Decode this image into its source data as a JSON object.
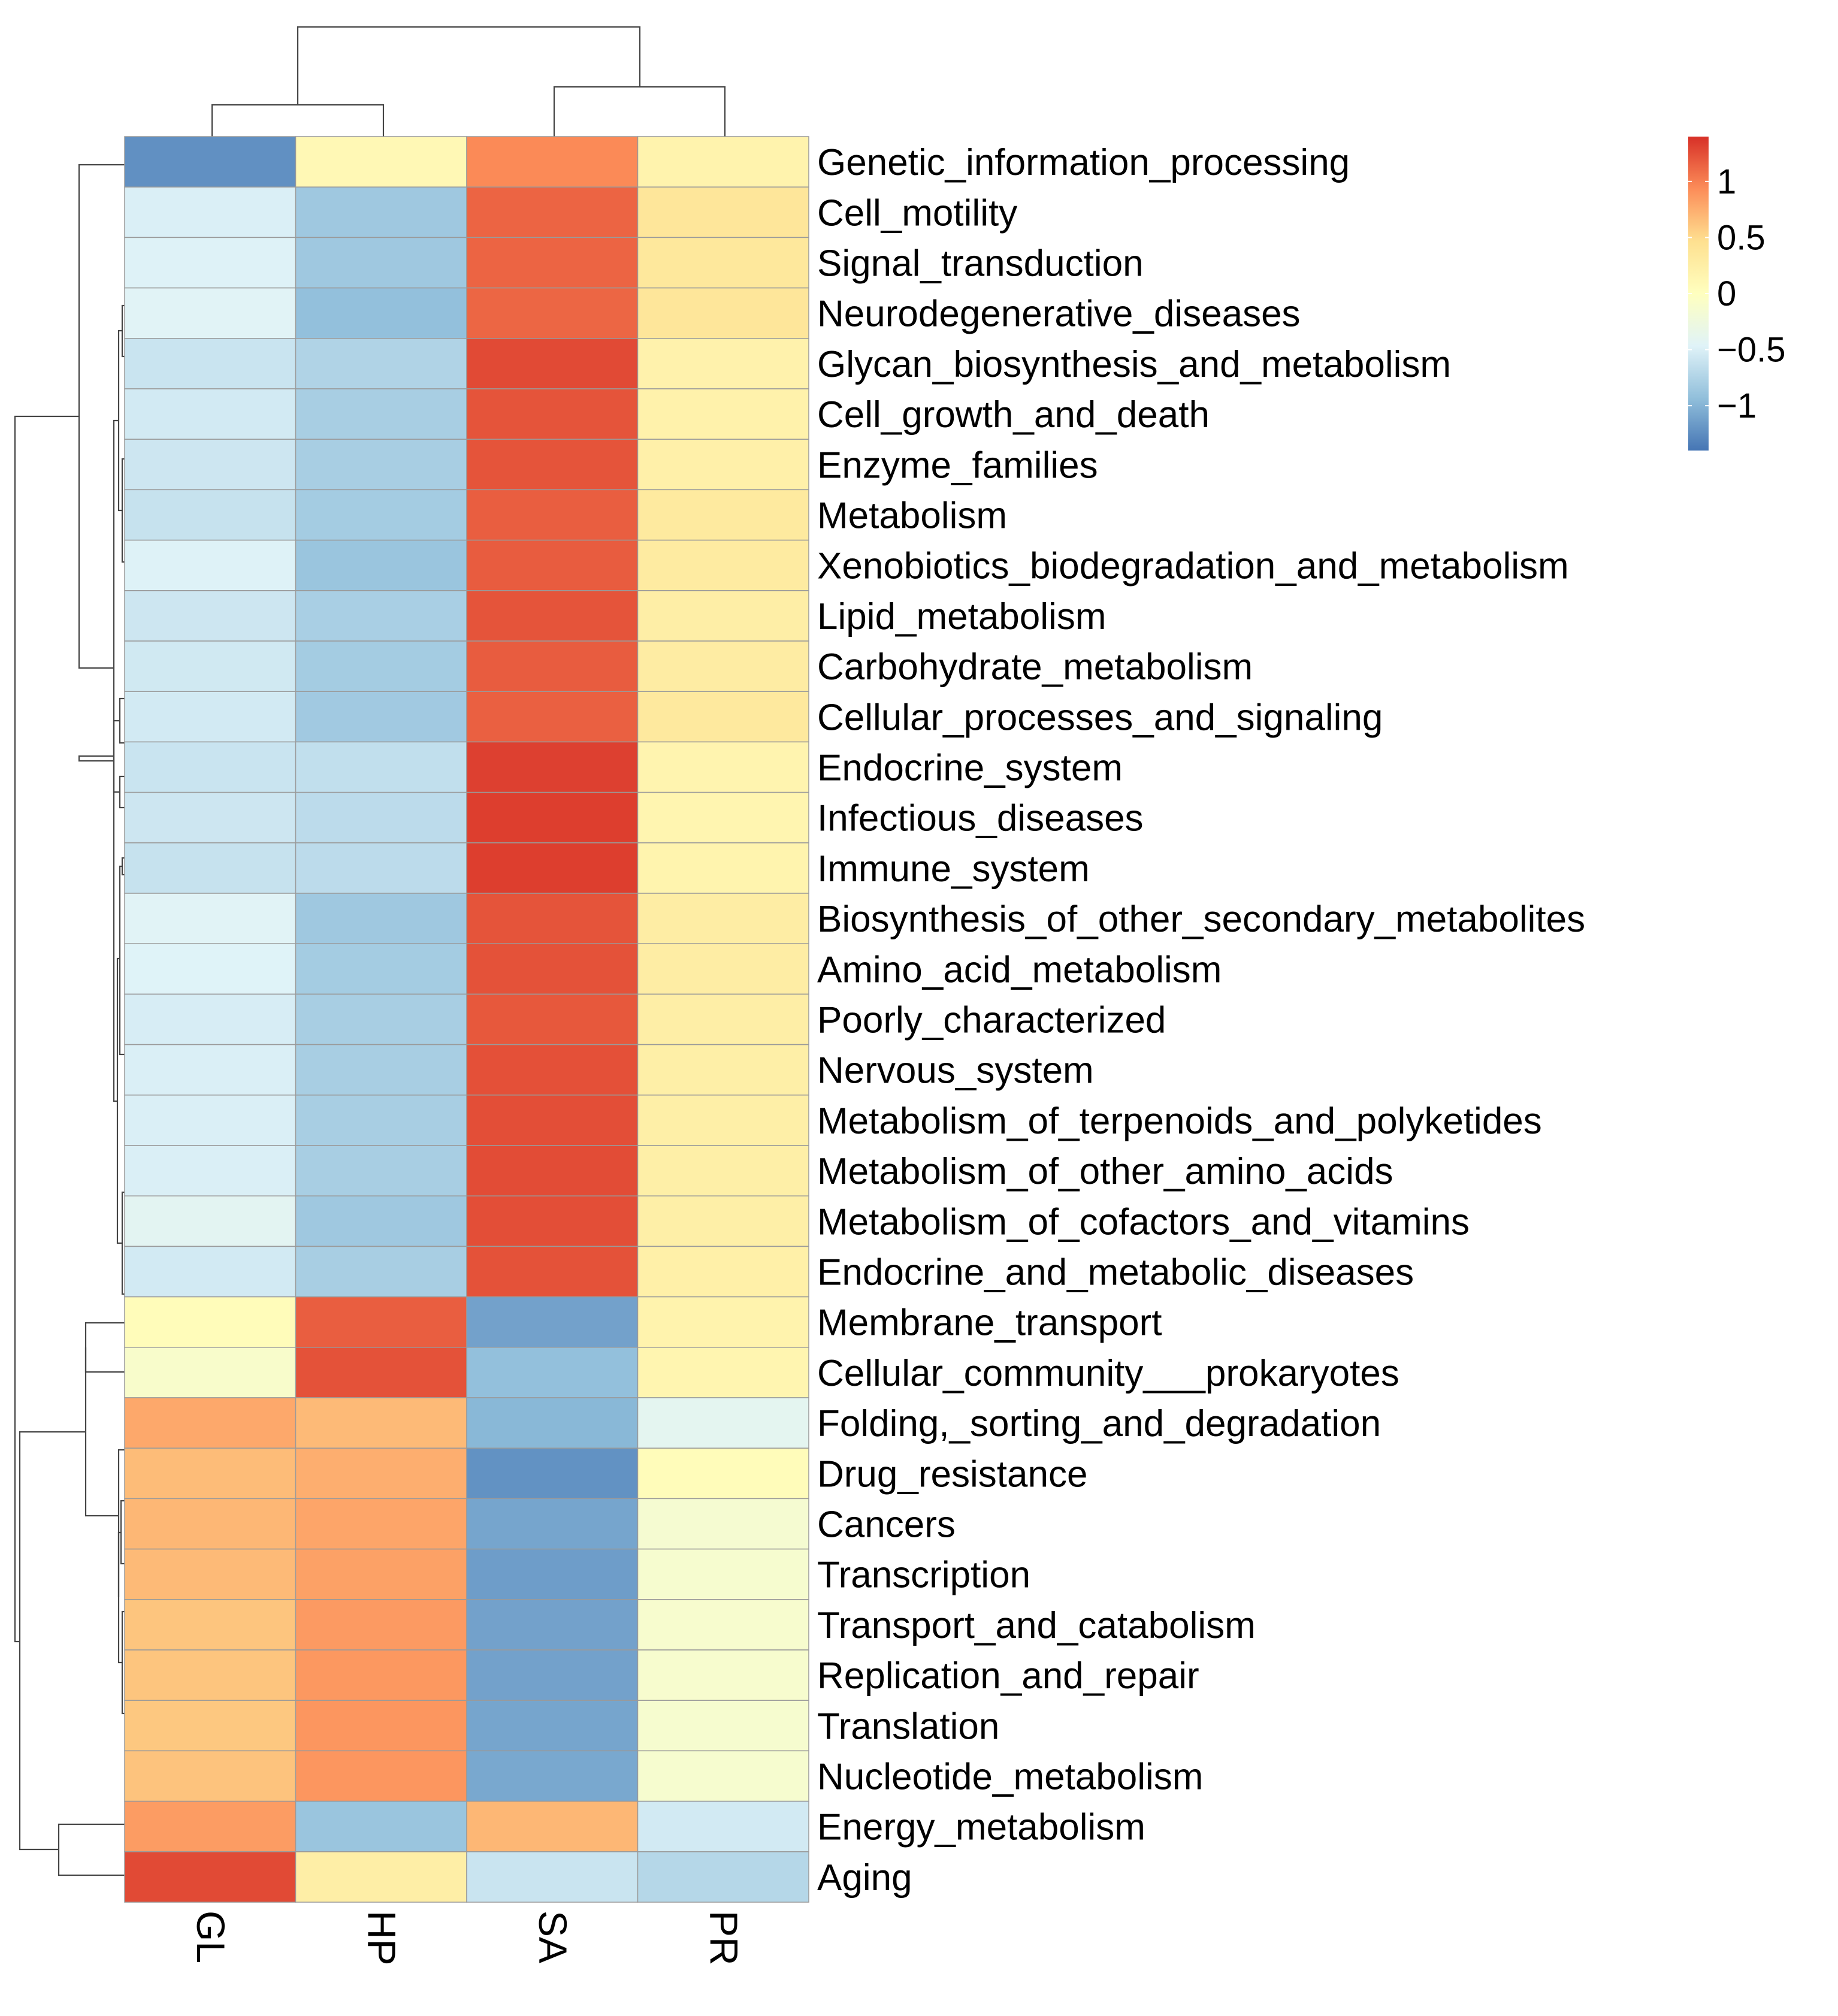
{
  "chart_data": {
    "type": "heatmap",
    "title": "",
    "columns": [
      "GL",
      "HP",
      "SA",
      "PR"
    ],
    "rows": [
      {
        "label": "Genetic_information_processing",
        "values": [
          -1.23,
          0.1,
          0.95,
          0.18
        ]
      },
      {
        "label": "Cell_motility",
        "values": [
          -0.5,
          -0.85,
          1.14,
          0.37
        ]
      },
      {
        "label": "Signal_transduction",
        "values": [
          -0.48,
          -0.85,
          1.14,
          0.35
        ]
      },
      {
        "label": "Neurodegenerative_diseases",
        "values": [
          -0.45,
          -0.92,
          1.13,
          0.37
        ]
      },
      {
        "label": "Glycan_biosynthesis_and_metabolism",
        "values": [
          -0.6,
          -0.75,
          1.27,
          0.19
        ]
      },
      {
        "label": "Cell_growth_and_death",
        "values": [
          -0.55,
          -0.8,
          1.22,
          0.2
        ]
      },
      {
        "label": "Enzyme_families",
        "values": [
          -0.58,
          -0.8,
          1.22,
          0.22
        ]
      },
      {
        "label": "Metabolism",
        "values": [
          -0.62,
          -0.82,
          1.17,
          0.32
        ]
      },
      {
        "label": "Xenobiotics_biodegradation_and_metabolism",
        "values": [
          -0.48,
          -0.88,
          1.18,
          0.3
        ]
      },
      {
        "label": "Lipid_metabolism",
        "values": [
          -0.58,
          -0.79,
          1.22,
          0.25
        ]
      },
      {
        "label": "Carbohydrate_metabolism",
        "values": [
          -0.56,
          -0.82,
          1.18,
          0.28
        ]
      },
      {
        "label": "Cellular_processes_and_signaling",
        "values": [
          -0.55,
          -0.84,
          1.16,
          0.33
        ]
      },
      {
        "label": "Endocrine_system",
        "values": [
          -0.6,
          -0.65,
          1.32,
          0.16
        ]
      },
      {
        "label": "Infectious_diseases",
        "values": [
          -0.58,
          -0.68,
          1.33,
          0.15
        ]
      },
      {
        "label": "Immune_system",
        "values": [
          -0.62,
          -0.68,
          1.33,
          0.17
        ]
      },
      {
        "label": "Biosynthesis_of_other_secondary_metabolites",
        "values": [
          -0.45,
          -0.85,
          1.22,
          0.27
        ]
      },
      {
        "label": "Amino_acid_metabolism",
        "values": [
          -0.47,
          -0.82,
          1.23,
          0.27
        ]
      },
      {
        "label": "Poorly_characterized",
        "values": [
          -0.52,
          -0.8,
          1.2,
          0.25
        ]
      },
      {
        "label": "Nervous_system",
        "values": [
          -0.5,
          -0.8,
          1.24,
          0.24
        ]
      },
      {
        "label": "Metabolism_of_terpenoids_and_polyketides",
        "values": [
          -0.5,
          -0.8,
          1.25,
          0.24
        ]
      },
      {
        "label": "Metabolism_of_other_amino_acids",
        "values": [
          -0.5,
          -0.8,
          1.26,
          0.24
        ]
      },
      {
        "label": "Metabolism_of_cofactors_and_vitamins",
        "values": [
          -0.42,
          -0.85,
          1.25,
          0.24
        ]
      },
      {
        "label": "Endocrine_and_metabolic_diseases",
        "values": [
          -0.55,
          -0.8,
          1.23,
          0.23
        ]
      },
      {
        "label": "Membrane_transport",
        "values": [
          0.05,
          1.17,
          -1.12,
          0.18
        ]
      },
      {
        "label": "Cellular_community___prokaryotes",
        "values": [
          -0.1,
          1.23,
          -0.92,
          0.15
        ]
      },
      {
        "label": "Folding,_sorting_and_degradation",
        "values": [
          0.78,
          0.68,
          -0.98,
          -0.4
        ]
      },
      {
        "label": "Drug_resistance",
        "values": [
          0.67,
          0.75,
          -1.22,
          0.05
        ]
      },
      {
        "label": "Cancers",
        "values": [
          0.7,
          0.8,
          -1.1,
          -0.15
        ]
      },
      {
        "label": "Transcription",
        "values": [
          0.68,
          0.82,
          -1.15,
          -0.13
        ]
      },
      {
        "label": "Transport_and_catabolism",
        "values": [
          0.62,
          0.86,
          -1.12,
          -0.12
        ]
      },
      {
        "label": "Replication_and_repair",
        "values": [
          0.62,
          0.87,
          -1.12,
          -0.12
        ]
      },
      {
        "label": "Translation",
        "values": [
          0.6,
          0.88,
          -1.1,
          -0.13
        ]
      },
      {
        "label": "Nucleotide_metabolism",
        "values": [
          0.63,
          0.88,
          -1.08,
          -0.13
        ]
      },
      {
        "label": "Energy_metabolism",
        "values": [
          0.85,
          -0.88,
          0.7,
          -0.55
        ]
      },
      {
        "label": "Aging",
        "values": [
          1.27,
          0.25,
          -0.6,
          -0.72
        ]
      }
    ],
    "col_order": [
      "GL",
      "HP",
      "SA",
      "PR"
    ],
    "row_dendrogram": true,
    "col_dendrogram": true,
    "legend": {
      "position": "top-right",
      "min": -1.4,
      "max": 1.4,
      "ticks": [
        {
          "value": 1,
          "label": "1"
        },
        {
          "value": 0.5,
          "label": "0.5"
        },
        {
          "value": 0,
          "label": "0"
        },
        {
          "value": -0.5,
          "label": "−0.5"
        },
        {
          "value": -1,
          "label": "−1"
        }
      ],
      "colors": [
        "#4575B4",
        "#91BFDB",
        "#E0F3F8",
        "#FFFFBF",
        "#FEE090",
        "#FC8D59",
        "#D73027"
      ]
    }
  }
}
